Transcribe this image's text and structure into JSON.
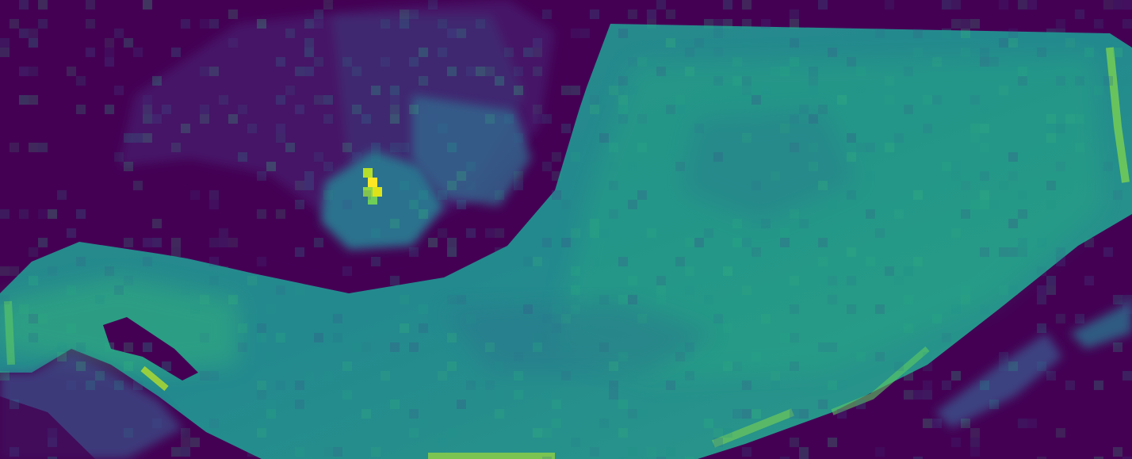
{
  "image": {
    "kind": "pixelated intensity map",
    "colormap": "viridis",
    "palette": {
      "background": "#440154",
      "low": "#3b528b",
      "mid": "#21918c",
      "high": "#5ec962",
      "peak": "#fde725"
    }
  }
}
